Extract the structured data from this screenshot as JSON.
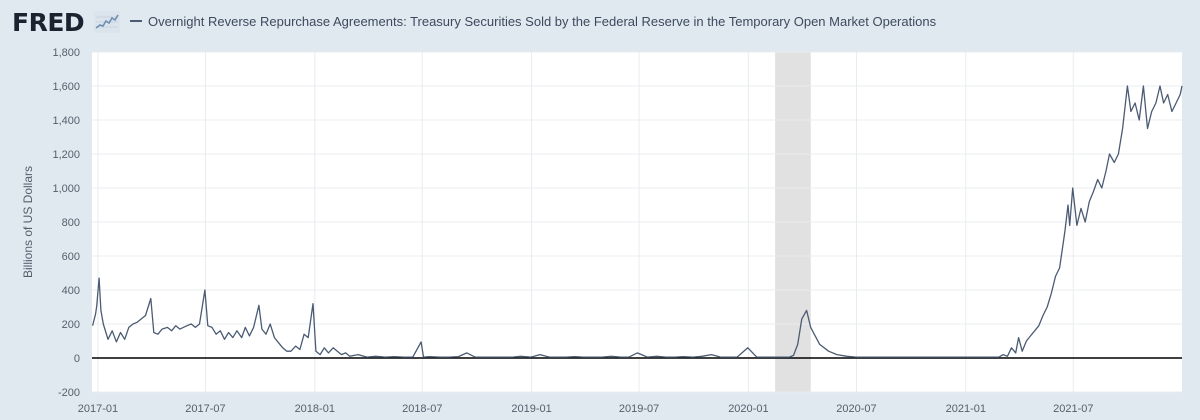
{
  "header": {
    "logo_text": "FRED",
    "legend_label": "Overnight Reverse Repurchase Agreements: Treasury Securities Sold by the Federal Reserve in the Temporary Open Market Operations"
  },
  "colors": {
    "background": "#e1e9f0",
    "plot_background": "#ffffff",
    "series_line": "#4b5b73",
    "recession_shade": "#e1e1e1",
    "zero_line": "#000000",
    "grid": "#e9ecef"
  },
  "icons": {
    "logo_graph": "line-graph-icon"
  },
  "chart_data": {
    "type": "line",
    "title": "",
    "xlabel": "",
    "ylabel": "Billions of US Dollars",
    "ylim": [
      -200,
      1800
    ],
    "xlim": [
      "2016-12-22",
      "2021-12-31"
    ],
    "yticks": [
      -200,
      0,
      200,
      400,
      600,
      800,
      1000,
      1200,
      1400,
      1600,
      1800
    ],
    "ytick_labels": [
      "-200",
      "0",
      "200",
      "400",
      "600",
      "800",
      "1,000",
      "1,200",
      "1,400",
      "1,600",
      "1,800"
    ],
    "xticks": [
      "2017-01-01",
      "2017-07-01",
      "2018-01-01",
      "2018-07-01",
      "2019-01-01",
      "2019-07-01",
      "2020-01-01",
      "2020-07-01",
      "2021-01-01",
      "2021-07-01"
    ],
    "xtick_labels": [
      "2017-01",
      "2017-07",
      "2018-01",
      "2018-07",
      "2019-01",
      "2019-07",
      "2020-01",
      "2020-07",
      "2021-01",
      "2021-07"
    ],
    "grid": true,
    "zero_line": true,
    "recession_shading": [
      [
        "2020-02-15",
        "2020-04-15"
      ]
    ],
    "series": [
      {
        "name": "Overnight Reverse Repurchase Agreements: Treasury Securities Sold by the Federal Reserve in the Temporary Open Market Operations",
        "x": [
          "2016-12-23",
          "2016-12-28",
          "2016-12-30",
          "2017-01-03",
          "2017-01-06",
          "2017-01-10",
          "2017-01-18",
          "2017-01-25",
          "2017-02-01",
          "2017-02-08",
          "2017-02-15",
          "2017-02-22",
          "2017-03-01",
          "2017-03-08",
          "2017-03-15",
          "2017-03-22",
          "2017-03-31",
          "2017-04-05",
          "2017-04-12",
          "2017-04-19",
          "2017-04-28",
          "2017-05-05",
          "2017-05-12",
          "2017-05-19",
          "2017-05-31",
          "2017-06-07",
          "2017-06-14",
          "2017-06-21",
          "2017-06-30",
          "2017-07-05",
          "2017-07-12",
          "2017-07-19",
          "2017-07-26",
          "2017-08-02",
          "2017-08-09",
          "2017-08-16",
          "2017-08-23",
          "2017-08-31",
          "2017-09-06",
          "2017-09-13",
          "2017-09-20",
          "2017-09-29",
          "2017-10-04",
          "2017-10-11",
          "2017-10-18",
          "2017-10-25",
          "2017-11-01",
          "2017-11-08",
          "2017-11-15",
          "2017-11-22",
          "2017-11-30",
          "2017-12-07",
          "2017-12-14",
          "2017-12-21",
          "2017-12-29",
          "2018-01-03",
          "2018-01-10",
          "2018-01-17",
          "2018-01-24",
          "2018-02-01",
          "2018-02-08",
          "2018-02-15",
          "2018-02-22",
          "2018-03-01",
          "2018-03-15",
          "2018-03-30",
          "2018-04-13",
          "2018-04-30",
          "2018-05-15",
          "2018-05-31",
          "2018-06-15",
          "2018-06-29",
          "2018-07-03",
          "2018-07-13",
          "2018-07-31",
          "2018-08-15",
          "2018-08-31",
          "2018-09-14",
          "2018-09-28",
          "2018-10-15",
          "2018-10-31",
          "2018-11-15",
          "2018-11-30",
          "2018-12-14",
          "2018-12-31",
          "2019-01-15",
          "2019-01-31",
          "2019-02-15",
          "2019-02-28",
          "2019-03-15",
          "2019-03-29",
          "2019-04-15",
          "2019-04-30",
          "2019-05-15",
          "2019-05-31",
          "2019-06-14",
          "2019-06-28",
          "2019-07-15",
          "2019-07-31",
          "2019-08-15",
          "2019-08-30",
          "2019-09-13",
          "2019-09-30",
          "2019-10-15",
          "2019-10-31",
          "2019-11-15",
          "2019-11-29",
          "2019-12-13",
          "2019-12-31",
          "2020-01-15",
          "2020-01-31",
          "2020-02-14",
          "2020-03-02",
          "2020-03-10",
          "2020-03-17",
          "2020-03-24",
          "2020-03-31",
          "2020-04-08",
          "2020-04-15",
          "2020-04-30",
          "2020-05-15",
          "2020-05-29",
          "2020-06-15",
          "2020-06-30",
          "2020-07-15",
          "2020-07-31",
          "2020-08-14",
          "2020-08-31",
          "2020-09-15",
          "2020-09-30",
          "2020-10-15",
          "2020-10-30",
          "2020-11-13",
          "2020-11-30",
          "2020-12-15",
          "2020-12-31",
          "2021-01-15",
          "2021-01-29",
          "2021-02-12",
          "2021-02-26",
          "2021-03-05",
          "2021-03-12",
          "2021-03-19",
          "2021-03-26",
          "2021-03-31",
          "2021-04-06",
          "2021-04-13",
          "2021-04-20",
          "2021-04-27",
          "2021-05-04",
          "2021-05-11",
          "2021-05-18",
          "2021-05-25",
          "2021-06-01",
          "2021-06-08",
          "2021-06-15",
          "2021-06-17",
          "2021-06-22",
          "2021-06-25",
          "2021-06-30",
          "2021-07-07",
          "2021-07-14",
          "2021-07-21",
          "2021-07-28",
          "2021-08-04",
          "2021-08-11",
          "2021-08-18",
          "2021-08-25",
          "2021-08-31",
          "2021-09-08",
          "2021-09-15",
          "2021-09-22",
          "2021-09-30",
          "2021-10-06",
          "2021-10-13",
          "2021-10-20",
          "2021-10-27",
          "2021-11-03",
          "2021-11-10",
          "2021-11-17",
          "2021-11-24",
          "2021-11-30",
          "2021-12-07",
          "2021-12-14",
          "2021-12-21",
          "2021-12-28",
          "2021-12-31"
        ],
        "y": [
          190,
          260,
          310,
          470,
          280,
          200,
          110,
          160,
          95,
          150,
          110,
          180,
          200,
          210,
          230,
          250,
          350,
          150,
          140,
          170,
          180,
          160,
          190,
          170,
          190,
          200,
          180,
          200,
          400,
          190,
          180,
          140,
          160,
          110,
          150,
          120,
          160,
          120,
          180,
          130,
          180,
          310,
          170,
          140,
          200,
          120,
          90,
          60,
          40,
          40,
          70,
          50,
          140,
          120,
          320,
          40,
          20,
          60,
          30,
          60,
          40,
          20,
          30,
          10,
          20,
          5,
          10,
          5,
          8,
          5,
          5,
          95,
          5,
          8,
          5,
          5,
          8,
          30,
          5,
          5,
          5,
          5,
          5,
          10,
          5,
          20,
          5,
          5,
          5,
          8,
          5,
          5,
          5,
          10,
          5,
          5,
          30,
          5,
          10,
          5,
          5,
          8,
          5,
          10,
          20,
          5,
          5,
          5,
          60,
          5,
          5,
          5,
          5,
          5,
          15,
          80,
          230,
          280,
          180,
          80,
          40,
          20,
          10,
          5,
          5,
          5,
          5,
          5,
          5,
          5,
          5,
          5,
          5,
          5,
          5,
          5,
          5,
          5,
          5,
          5,
          20,
          10,
          60,
          30,
          120,
          40,
          100,
          130,
          160,
          190,
          250,
          300,
          380,
          480,
          530,
          700,
          750,
          900,
          780,
          1000,
          780,
          880,
          800,
          920,
          980,
          1050,
          1000,
          1100,
          1200,
          1150,
          1200,
          1350,
          1600,
          1450,
          1500,
          1400,
          1600,
          1350,
          1450,
          1500,
          1600,
          1500,
          1550,
          1450,
          1500,
          1550,
          1600
        ]
      }
    ]
  }
}
